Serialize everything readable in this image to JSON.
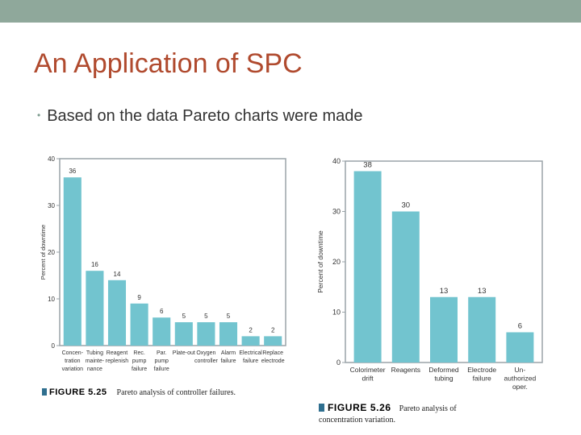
{
  "colors": {
    "topbar": "#8fa89b",
    "title": "#b04a2e",
    "bar": "#72c4cf",
    "axis": "#9aa3a8",
    "caption_fig": "#2f6f8f"
  },
  "slide": {
    "title": "An Application of SPC",
    "bullet": "Based on the data Pareto charts were made"
  },
  "captions": [
    {
      "figure": "FIGURE 5.25",
      "text": "Pareto analysis of controller failures."
    },
    {
      "figure": "FIGURE 5.26",
      "text_line1": "Pareto analysis of",
      "text_line2": "concentration variation."
    }
  ],
  "chart_data": [
    {
      "type": "bar",
      "title": "",
      "ylabel": "Percent of downtime",
      "xlabel": "",
      "ylim": [
        0,
        40
      ],
      "yticks": [
        0,
        10,
        20,
        30,
        40
      ],
      "grid": false,
      "categories": [
        [
          "Concen-",
          "tration",
          "variation"
        ],
        [
          "Tubing",
          "mainte-",
          "nance"
        ],
        [
          "Reagent",
          "replenish"
        ],
        [
          "Rec.",
          "pump",
          "failure"
        ],
        [
          "Par.",
          "pump",
          "failure"
        ],
        [
          "Plate-out"
        ],
        [
          "Oxygen",
          "controller"
        ],
        [
          "Alarm",
          "failure"
        ],
        [
          "Electrical",
          "failure"
        ],
        [
          "Replace",
          "electrode"
        ]
      ],
      "values": [
        36,
        16,
        14,
        9,
        6,
        5,
        5,
        5,
        2,
        2
      ],
      "value_labels": [
        "36",
        "16",
        "14",
        "9",
        "6",
        "5",
        "5",
        "5",
        "2",
        "2"
      ]
    },
    {
      "type": "bar",
      "title": "",
      "ylabel": "Percent of downtime",
      "xlabel": "",
      "ylim": [
        0,
        40
      ],
      "yticks": [
        0,
        10,
        20,
        30,
        40
      ],
      "grid": false,
      "categories": [
        [
          "Colorimeter",
          "drift"
        ],
        [
          "Reagents"
        ],
        [
          "Deformed",
          "tubing"
        ],
        [
          "Electrode",
          "failure"
        ],
        [
          "Un-",
          "authorized",
          "oper."
        ]
      ],
      "values": [
        38,
        30,
        13,
        13,
        6
      ],
      "value_labels": [
        "38",
        "30",
        "13",
        "13",
        "6"
      ]
    }
  ]
}
